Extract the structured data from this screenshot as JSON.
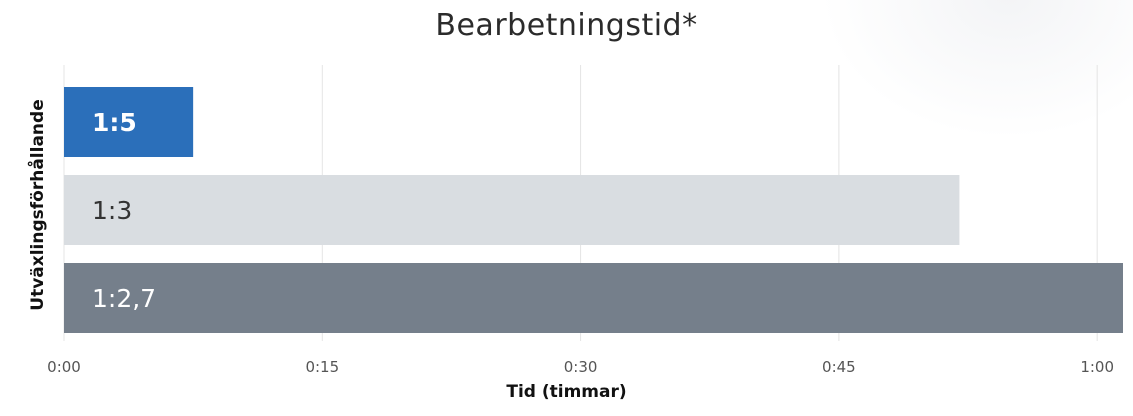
{
  "chart_data": {
    "type": "bar",
    "orientation": "horizontal",
    "title": "Bearbetningstid*",
    "xlabel": "Tid (timmar)",
    "ylabel": "Utväxlingsförhållande",
    "xlim": [
      0,
      61.5
    ],
    "x_ticks": [
      {
        "value": 0,
        "label": "0:00"
      },
      {
        "value": 15,
        "label": "0:15"
      },
      {
        "value": 30,
        "label": "0:30"
      },
      {
        "value": 45,
        "label": "0:45"
      },
      {
        "value": 60,
        "label": "1:00"
      }
    ],
    "grid": true,
    "categories": [
      "1:5",
      "1:3",
      "1:2,7"
    ],
    "values": [
      7.5,
      52,
      61.5
    ],
    "colors": [
      "#2b6fba",
      "#d9dde1",
      "#757f8b"
    ],
    "label_colors": [
      "#ffffff",
      "#333333",
      "#ffffff"
    ],
    "label_bold": [
      true,
      false,
      false
    ]
  }
}
